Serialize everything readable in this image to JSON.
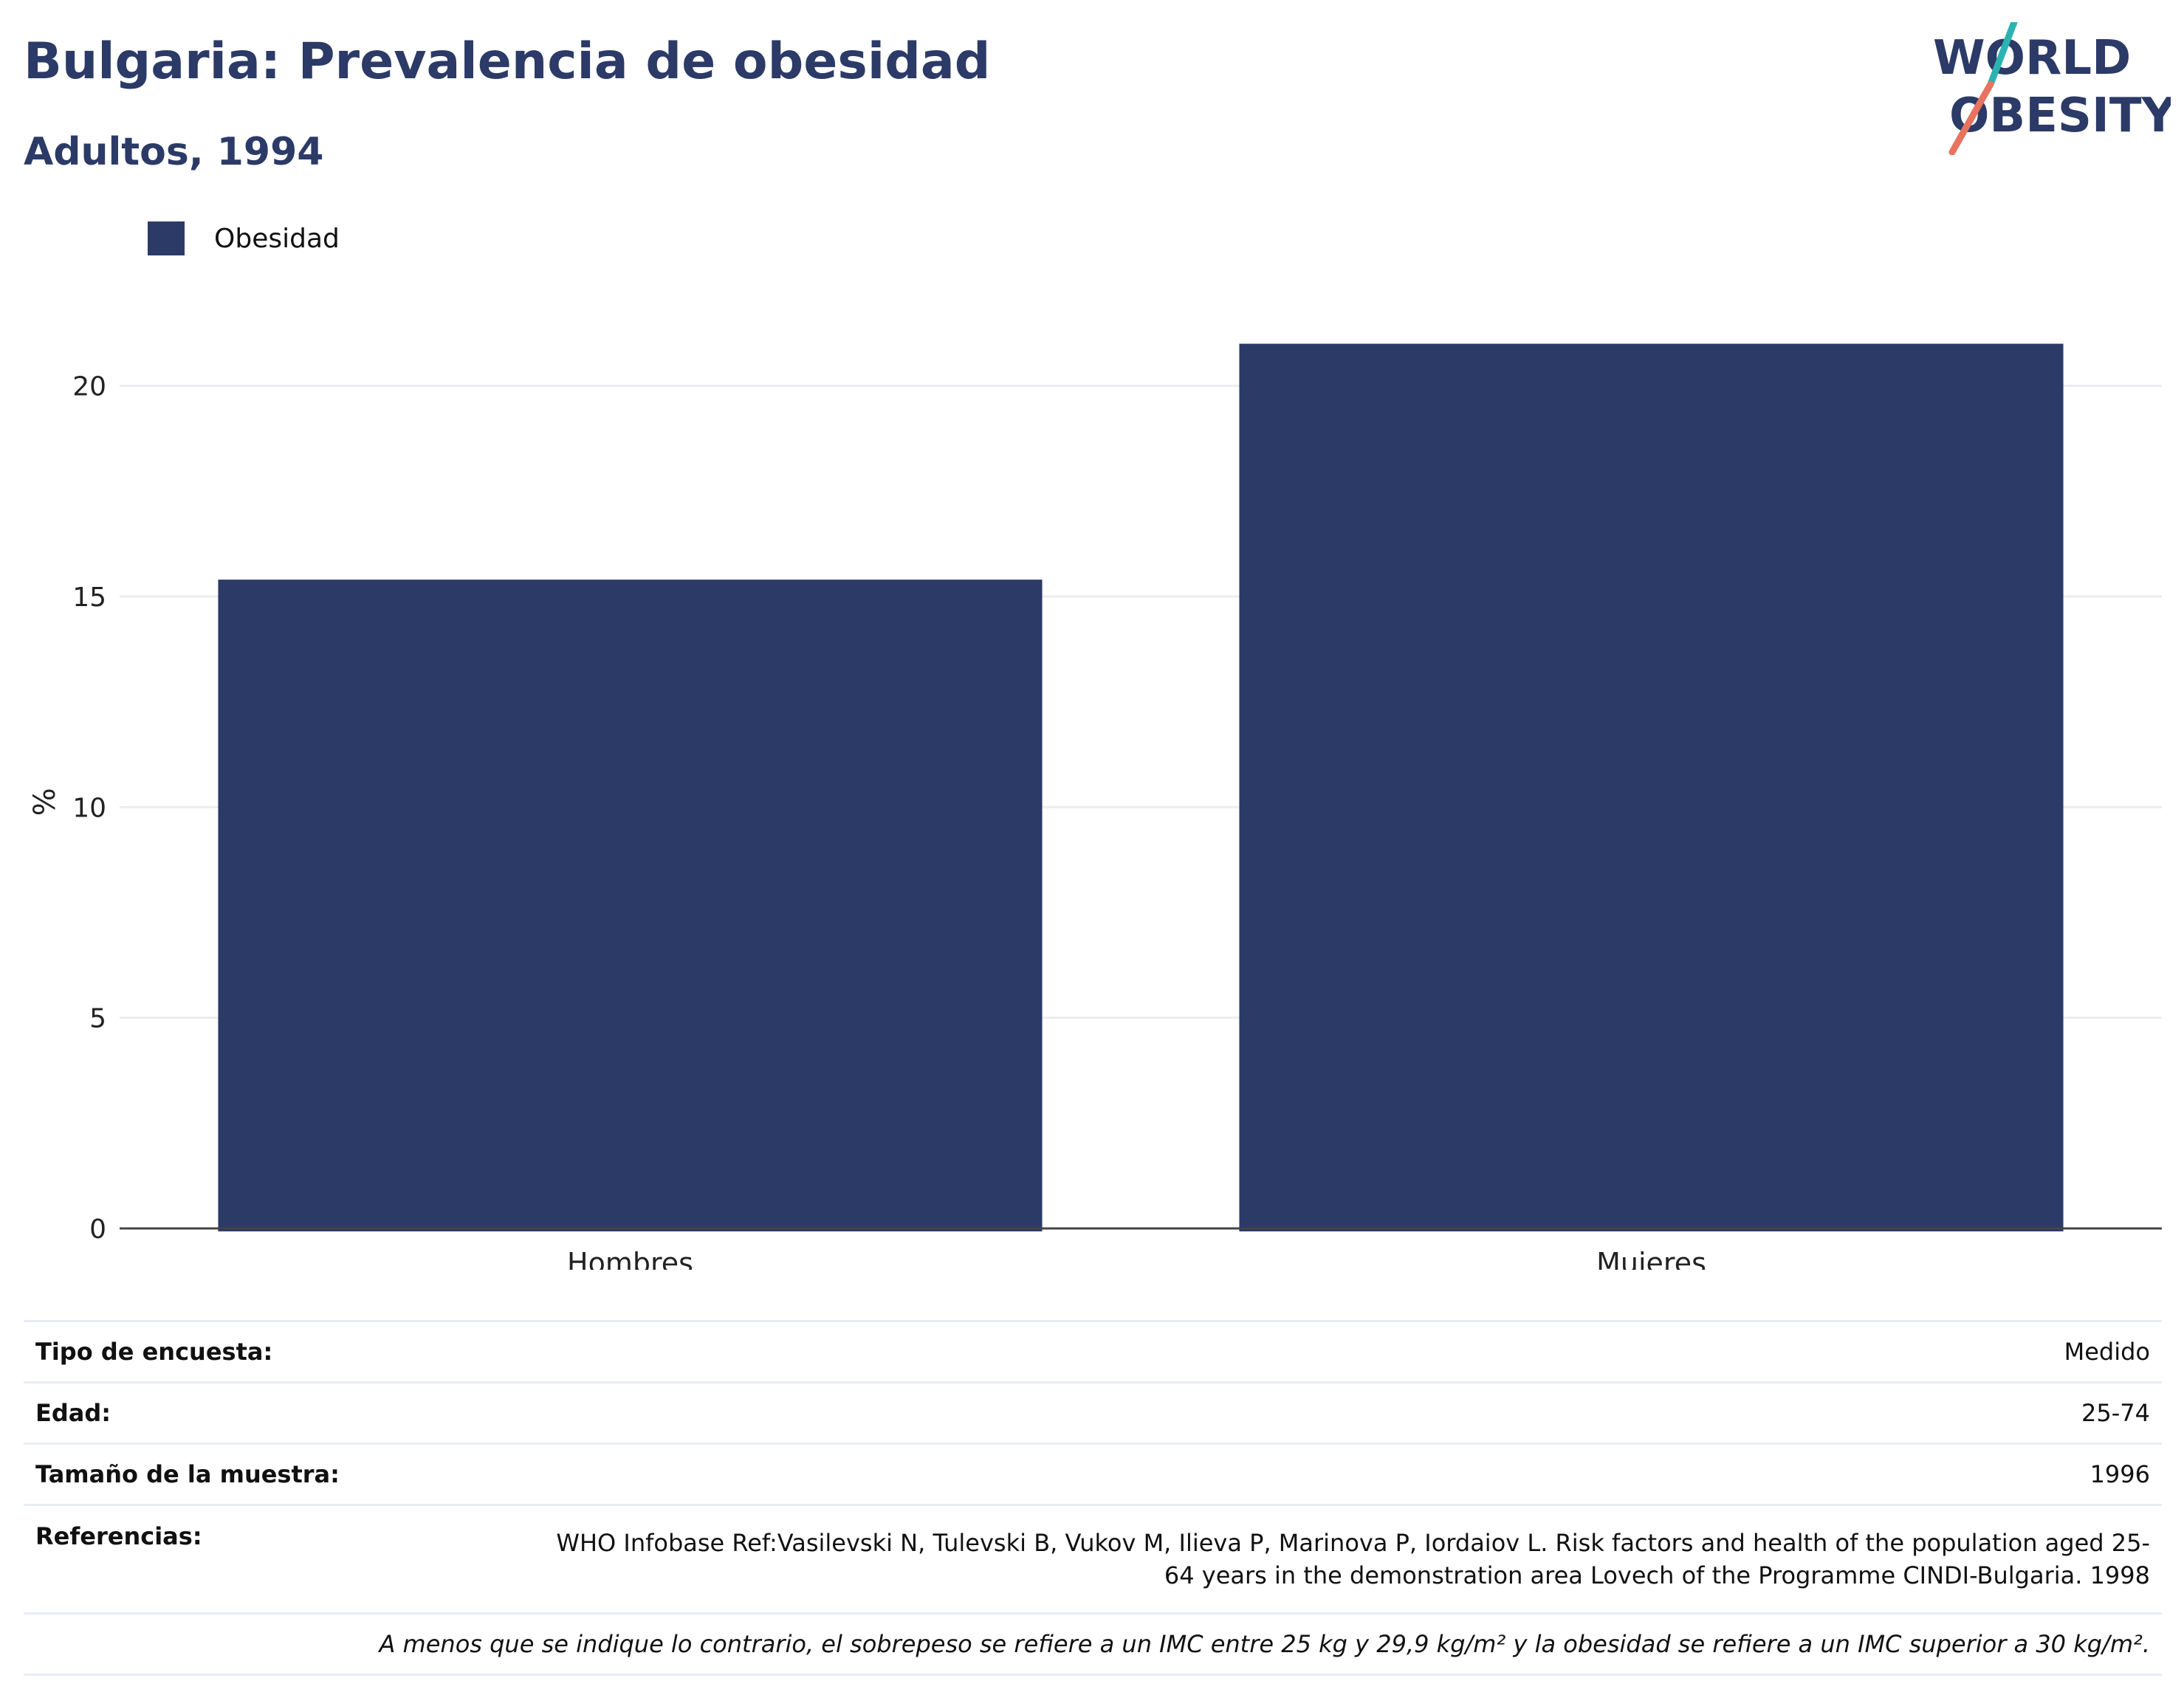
{
  "header": {
    "title": "Bulgaria: Prevalencia de obesidad",
    "subtitle": "Adultos, 1994"
  },
  "logo": {
    "line1": "WORLD",
    "line2": "OBESITY",
    "text_color": "#2b3a67",
    "slash_top_color": "#2bb3b1",
    "slash_bottom_color": "#e8735f"
  },
  "legend": {
    "label": "Obesidad"
  },
  "chart_data": {
    "type": "bar",
    "categories": [
      "Hombres",
      "Mujeres"
    ],
    "series": [
      {
        "name": "Obesidad",
        "values": [
          15.4,
          21.0
        ],
        "color": "#2b3a67"
      }
    ],
    "ylabel": "%",
    "ylim": [
      0,
      22.5
    ],
    "yticks": [
      0,
      5,
      10,
      15,
      20
    ],
    "grid": true,
    "legend_position": "top-left"
  },
  "info": {
    "rows": [
      {
        "key": "Tipo de encuesta:",
        "value": "Medido"
      },
      {
        "key": "Edad:",
        "value": "25-74"
      },
      {
        "key": "Tamaño de la muestra:",
        "value": "1996"
      },
      {
        "key": "Referencias:",
        "value_line1": "WHO Infobase Ref:Vasilevski N, Tulevski B, Vukov M, Ilieva P, Marinova P, Iordaiov L. Risk factors and health of the population aged 25-",
        "value_line2": "64 years in the demonstration area Lovech of the Programme CINDI-Bulgaria. 1998"
      }
    ],
    "note": "A menos que se indique lo contrario, el sobrepeso se refiere a un IMC entre 25 kg y 29,9 kg/m² y la obesidad se refiere a un IMC superior a 30 kg/m²."
  }
}
